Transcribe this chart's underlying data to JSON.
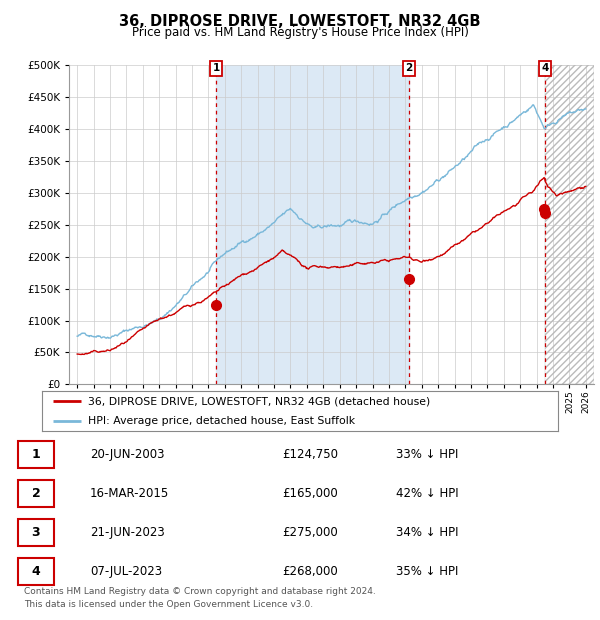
{
  "title": "36, DIPROSE DRIVE, LOWESTOFT, NR32 4GB",
  "subtitle": "Price paid vs. HM Land Registry's House Price Index (HPI)",
  "hpi_label": "HPI: Average price, detached house, East Suffolk",
  "property_label": "36, DIPROSE DRIVE, LOWESTOFT, NR32 4GB (detached house)",
  "hpi_color": "#7ab8d9",
  "property_color": "#cc0000",
  "dot_color": "#cc0000",
  "vline_color": "#cc0000",
  "shade_color": "#dce9f5",
  "plot_bg": "#ffffff",
  "grid_color": "#cccccc",
  "ylim": [
    0,
    500000
  ],
  "yticks": [
    0,
    50000,
    100000,
    150000,
    200000,
    250000,
    300000,
    350000,
    400000,
    450000,
    500000
  ],
  "xlim_start": 1994.5,
  "xlim_end": 2026.5,
  "transactions": [
    {
      "label": "1",
      "date": "20-JUN-2003",
      "price": 124750,
      "pct": "33%",
      "year": 2003.47,
      "show_vline": true
    },
    {
      "label": "2",
      "date": "16-MAR-2015",
      "price": 165000,
      "pct": "42%",
      "year": 2015.21,
      "show_vline": true
    },
    {
      "label": "3",
      "date": "21-JUN-2023",
      "price": 275000,
      "pct": "34%",
      "year": 2023.47,
      "show_vline": false
    },
    {
      "label": "4",
      "date": "07-JUL-2023",
      "price": 268000,
      "pct": "35%",
      "year": 2023.52,
      "show_vline": true
    }
  ],
  "footer": "Contains HM Land Registry data © Crown copyright and database right 2024.\nThis data is licensed under the Open Government Licence v3.0.",
  "row_labels": [
    "1",
    "2",
    "3",
    "4"
  ],
  "row_dates": [
    "20-JUN-2003",
    "16-MAR-2015",
    "21-JUN-2023",
    "07-JUL-2023"
  ],
  "row_prices": [
    "£124,750",
    "£165,000",
    "£275,000",
    "£268,000"
  ],
  "row_pcts": [
    "33% ↓ HPI",
    "42% ↓ HPI",
    "34% ↓ HPI",
    "35% ↓ HPI"
  ]
}
